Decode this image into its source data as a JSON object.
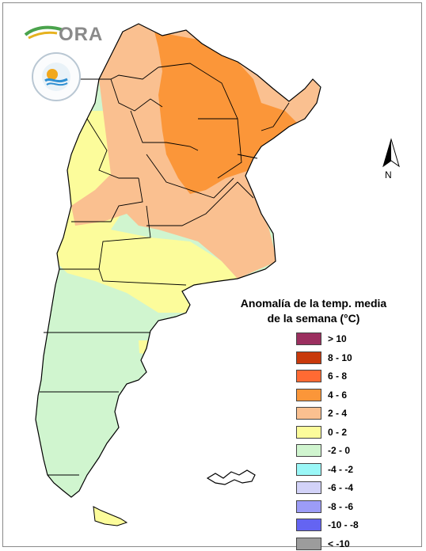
{
  "title": {
    "line1": "Anomalía de la temp. media",
    "line2": "de la semana (°C)"
  },
  "logos": {
    "ora": "ORA",
    "seal": "SERVICIO METEOROLÓGICO NACIONAL ARGENTINA"
  },
  "north_arrow": {
    "label": "N"
  },
  "legend": [
    {
      "label": "> 10",
      "color": "#9b2f5f"
    },
    {
      "label": "8 - 10",
      "color": "#c8390b"
    },
    {
      "label": "6 - 8",
      "color": "#ff6a33"
    },
    {
      "label": "4 - 6",
      "color": "#fb9639"
    },
    {
      "label": "2 - 4",
      "color": "#fac090"
    },
    {
      "label": "0 - 2",
      "color": "#fcfc9b"
    },
    {
      "label": "-2 - 0",
      "color": "#d0f5cf"
    },
    {
      "label": "-4 - -2",
      "color": "#9af7f7"
    },
    {
      "label": "-6 - -4",
      "color": "#d2d2f8"
    },
    {
      "label": "-8 - -6",
      "color": "#9c9cf7"
    },
    {
      "label": "-10 - -8",
      "color": "#6464f2"
    },
    {
      "label": "< -10",
      "color": "#9c9c9c"
    }
  ],
  "colors": {
    "frame": "#8a8a8a",
    "boundary": "#000000"
  }
}
